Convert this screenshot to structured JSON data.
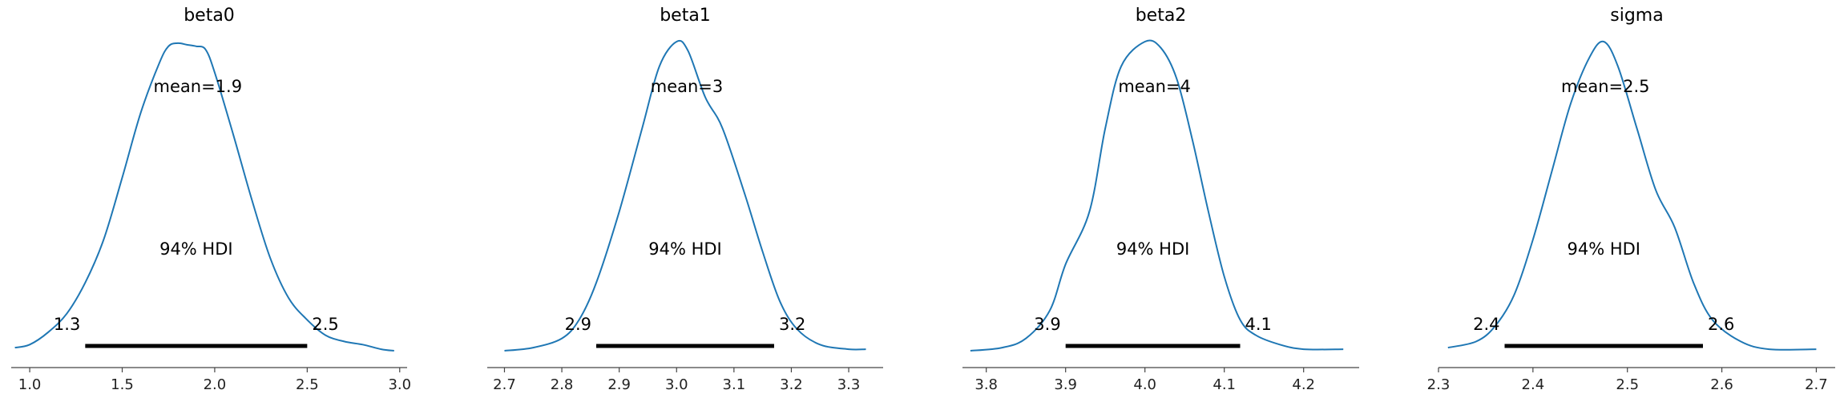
{
  "chart_data": [
    {
      "type": "line",
      "title": "beta0",
      "xlim": [
        0.9,
        3.04
      ],
      "x_ticks": [
        1.0,
        1.5,
        2.0,
        2.5,
        3.0
      ],
      "x_tick_labels": [
        "1.0",
        "1.5",
        "2.0",
        "2.5",
        "3.0"
      ],
      "density_x": [
        0.92,
        1.0,
        1.1,
        1.2,
        1.3,
        1.4,
        1.5,
        1.6,
        1.7,
        1.75,
        1.8,
        1.85,
        1.9,
        1.95,
        2.0,
        2.1,
        2.2,
        2.3,
        2.4,
        2.5,
        2.6,
        2.7,
        2.8,
        2.9,
        2.97
      ],
      "density_y": [
        0.01,
        0.02,
        0.06,
        0.12,
        0.22,
        0.36,
        0.56,
        0.77,
        0.93,
        0.985,
        0.995,
        0.99,
        0.985,
        0.975,
        0.9,
        0.7,
        0.49,
        0.3,
        0.17,
        0.1,
        0.05,
        0.03,
        0.02,
        0.005,
        0.0
      ],
      "mean_label": "mean=1.9",
      "hdi_label": "94% HDI",
      "hdi": [
        1.3,
        2.5
      ],
      "hdi_low_label": "1.3",
      "hdi_high_label": "2.5",
      "line_color": "#1f77b4"
    },
    {
      "type": "line",
      "title": "beta1",
      "xlim": [
        2.67,
        3.36
      ],
      "x_ticks": [
        2.7,
        2.8,
        2.9,
        3.0,
        3.1,
        3.2,
        3.3
      ],
      "x_tick_labels": [
        "2.7",
        "2.8",
        "2.9",
        "3.0",
        "3.1",
        "3.2",
        "3.3"
      ],
      "density_x": [
        2.7,
        2.75,
        2.8,
        2.83,
        2.86,
        2.9,
        2.94,
        2.97,
        3.0,
        3.02,
        3.05,
        3.08,
        3.12,
        3.15,
        3.18,
        3.21,
        3.25,
        3.3,
        3.33
      ],
      "density_y": [
        0.0,
        0.01,
        0.04,
        0.1,
        0.22,
        0.45,
        0.72,
        0.92,
        1.0,
        0.97,
        0.82,
        0.72,
        0.5,
        0.32,
        0.16,
        0.07,
        0.02,
        0.005,
        0.005
      ],
      "mean_label": "mean=3",
      "hdi_label": "94% HDI",
      "hdi": [
        2.86,
        3.17
      ],
      "hdi_low_label": "2.9",
      "hdi_high_label": "3.2",
      "line_color": "#1f77b4"
    },
    {
      "type": "line",
      "title": "beta2",
      "xlim": [
        3.77,
        4.27
      ],
      "x_ticks": [
        3.8,
        3.9,
        4.0,
        4.1,
        4.2
      ],
      "x_tick_labels": [
        "3.8",
        "3.9",
        "4.0",
        "4.1",
        "4.2"
      ],
      "density_x": [
        3.78,
        3.82,
        3.85,
        3.88,
        3.9,
        3.93,
        3.95,
        3.97,
        4.0,
        4.02,
        4.04,
        4.06,
        4.08,
        4.1,
        4.12,
        4.14,
        4.17,
        4.2,
        4.25
      ],
      "density_y": [
        0.0,
        0.01,
        0.04,
        0.13,
        0.28,
        0.45,
        0.72,
        0.92,
        1.0,
        0.98,
        0.88,
        0.68,
        0.45,
        0.24,
        0.1,
        0.05,
        0.02,
        0.005,
        0.005
      ],
      "mean_label": "mean=4",
      "hdi_label": "94% HDI",
      "hdi": [
        3.9,
        4.12
      ],
      "hdi_low_label": "3.9",
      "hdi_high_label": "4.1",
      "line_color": "#1f77b4"
    },
    {
      "type": "line",
      "title": "sigma",
      "xlim": [
        2.3,
        2.72
      ],
      "x_ticks": [
        2.3,
        2.4,
        2.5,
        2.6,
        2.7
      ],
      "x_tick_labels": [
        "2.3",
        "2.4",
        "2.5",
        "2.6",
        "2.7"
      ],
      "density_x": [
        2.31,
        2.34,
        2.36,
        2.38,
        2.4,
        2.42,
        2.44,
        2.46,
        2.475,
        2.49,
        2.51,
        2.53,
        2.55,
        2.57,
        2.59,
        2.62,
        2.65,
        2.7
      ],
      "density_y": [
        0.01,
        0.03,
        0.08,
        0.18,
        0.36,
        0.58,
        0.8,
        0.95,
        1.0,
        0.92,
        0.72,
        0.52,
        0.4,
        0.22,
        0.1,
        0.03,
        0.005,
        0.005
      ],
      "mean_label": "mean=2.5",
      "hdi_label": "94% HDI",
      "hdi": [
        2.37,
        2.58
      ],
      "hdi_low_label": "2.4",
      "hdi_high_label": "2.6",
      "line_color": "#1f77b4"
    }
  ]
}
